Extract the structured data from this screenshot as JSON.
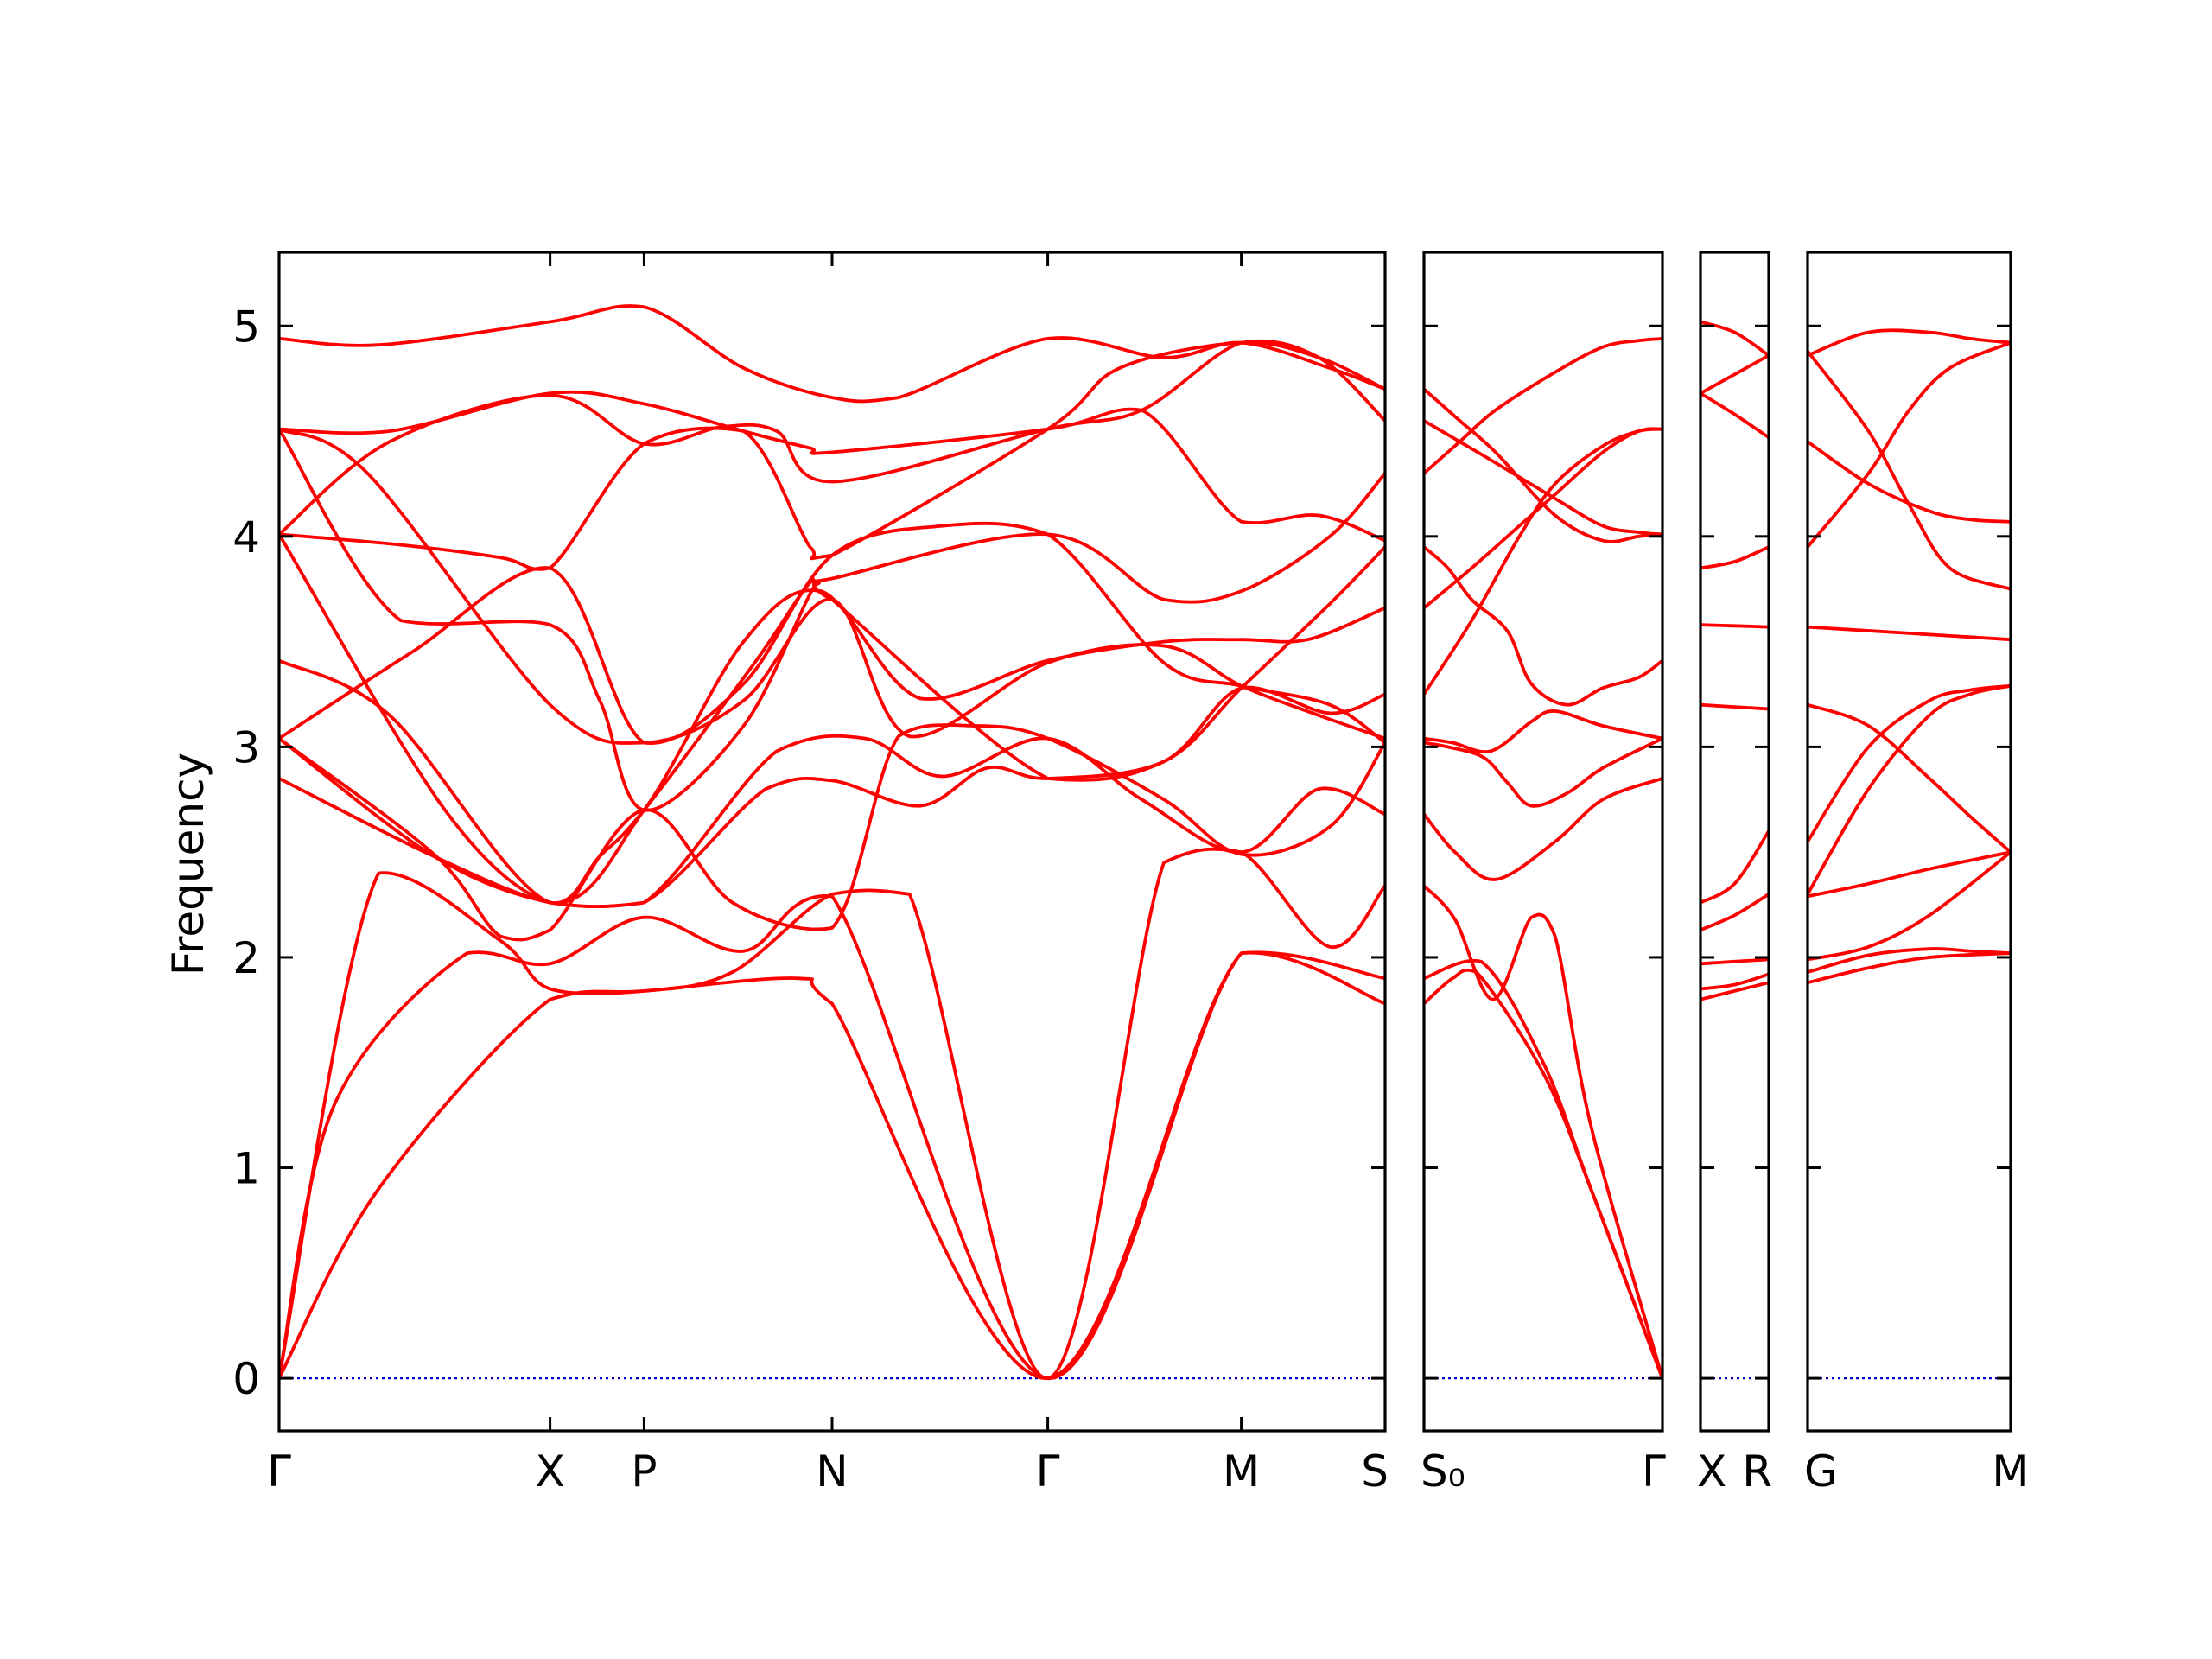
{
  "chart_data": {
    "type": "line",
    "ylabel": "Frequency",
    "ylim": [
      -0.25,
      5.35
    ],
    "yticks": [
      "0",
      "1",
      "2",
      "3",
      "4",
      "5"
    ],
    "band_color": "#ff0000",
    "zero_line_color": "#0000cc",
    "panels": [
      {
        "xlim": [
          0,
          10
        ],
        "kpoints": [
          {
            "label": "Γ",
            "x": 0
          },
          {
            "label": "X",
            "x": 2.45
          },
          {
            "label": "P",
            "x": 3.3
          },
          {
            "label": "N",
            "x": 5.0
          },
          {
            "label": "Γ",
            "x": 6.95
          },
          {
            "label": "M",
            "x": 8.7
          },
          {
            "label": "S",
            "x": 10
          }
        ],
        "bands": [
          {
            "x": [
              0,
              0.9,
              2.45,
              3.3,
              4.7,
              5.0,
              6.95,
              8.7,
              10
            ],
            "y": [
              0,
              0.9,
              1.8,
              1.84,
              1.9,
              1.78,
              0,
              2.02,
              1.78
            ]
          },
          {
            "x": [
              0,
              0.5,
              1.7,
              2.45,
              3.3,
              4.2,
              5.0,
              6.95,
              8.7,
              10
            ],
            "y": [
              0,
              1.3,
              2.02,
              1.97,
              2.19,
              2.03,
              2.29,
              0,
              2.02,
              1.9
            ]
          },
          {
            "x": [
              0,
              0.9,
              2.0,
              2.45,
              3.3,
              4.1,
              5.0,
              5.7,
              6.95,
              8.0,
              8.7,
              9.5,
              10
            ],
            "y": [
              0,
              2.4,
              2.08,
              1.85,
              1.84,
              1.93,
              2.3,
              2.3,
              0,
              2.45,
              2.5,
              2.05,
              2.34
            ]
          },
          {
            "x": [
              0,
              1.4,
              2.45,
              3.3,
              4.5,
              5.3,
              6.0,
              6.95,
              7.8,
              8.7,
              9.4,
              10
            ],
            "y": [
              2.85,
              2.48,
              2.26,
              2.26,
              2.98,
              3.04,
              2.86,
              3.04,
              2.75,
              2.5,
              2.8,
              2.68
            ]
          },
          {
            "x": [
              0,
              1.4,
              2.45,
              3.3,
              4.4,
              5.0,
              5.8,
              6.4,
              6.95,
              8.0,
              8.7,
              9.5,
              10
            ],
            "y": [
              3.04,
              2.48,
              2.26,
              2.26,
              2.8,
              2.84,
              2.72,
              2.9,
              2.85,
              2.93,
              3.28,
              3.16,
              3.25
            ]
          },
          {
            "x": [
              0,
              1.4,
              2.0,
              2.45,
              3.3,
              4.1,
              5.0,
              5.6,
              6.3,
              6.95,
              8.0,
              8.7,
              9.5,
              10
            ],
            "y": [
              3.04,
              2.49,
              2.1,
              2.13,
              2.7,
              2.26,
              2.14,
              3.05,
              3.1,
              3.04,
              2.75,
              2.49,
              2.62,
              3.02
            ]
          },
          {
            "x": [
              0,
              1.0,
              2.45,
              3.3,
              4.2,
              4.9,
              5.8,
              6.95,
              8.0,
              8.7,
              9.3,
              10
            ],
            "y": [
              3.41,
              3.15,
              2.26,
              2.7,
              3.5,
              3.74,
              3.23,
              3.41,
              3.5,
              3.51,
              3.51,
              3.66
            ]
          },
          {
            "x": [
              0,
              1.2,
              2.45,
              3.3,
              4.2,
              5.0,
              6.0,
              6.95,
              8.0,
              8.7,
              9.5,
              10
            ],
            "y": [
              3.04,
              3.45,
              3.85,
              3.02,
              3.3,
              3.91,
              4.05,
              4.01,
              3.4,
              3.29,
              3.2,
              3.02
            ]
          },
          {
            "x": [
              0,
              1.5,
              2.45,
              2.9,
              3.3,
              4.3,
              4.8,
              5.0,
              6.95,
              8.0,
              8.7,
              9.5,
              10
            ],
            "y": [
              4.01,
              2.7,
              2.26,
              2.48,
              2.7,
              3.4,
              3.78,
              3.8,
              4.01,
              3.7,
              3.74,
              4.0,
              4.3
            ]
          },
          {
            "x": [
              0,
              1.1,
              2.45,
              2.9,
              3.3,
              4.2,
              4.85,
              5.0,
              6.95,
              8.0,
              8.7,
              9.5,
              10
            ],
            "y": [
              4.51,
              3.6,
              3.58,
              3.22,
              2.7,
              3.1,
              3.77,
              3.7,
              2.85,
              2.93,
              3.28,
              3.68,
              3.95
            ]
          },
          {
            "x": [
              0,
              0.8,
              2.45,
              3.3,
              4.2,
              5.0,
              5.7,
              6.95,
              8.0,
              8.7,
              9.4,
              10
            ],
            "y": [
              4.51,
              4.3,
              3.2,
              3.02,
              3.22,
              3.7,
              3.05,
              3.4,
              3.48,
              3.29,
              3.15,
              3.04
            ]
          },
          {
            "x": [
              0,
              1.1,
              2.0,
              2.45,
              3.3,
              4.2,
              4.8,
              5.0,
              6.95,
              7.6,
              8.7,
              9.4,
              10
            ],
            "y": [
              4.01,
              3.96,
              3.9,
              3.85,
              4.44,
              4.5,
              3.95,
              3.91,
              4.51,
              4.8,
              4.92,
              4.85,
              4.7
            ]
          },
          {
            "x": [
              0,
              1.0,
              2.45,
              3.3,
              4.2,
              4.8,
              5.0,
              6.95,
              7.8,
              8.7,
              9.4,
              10
            ],
            "y": [
              4.51,
              4.5,
              4.68,
              4.63,
              4.5,
              4.42,
              4.4,
              4.51,
              4.6,
              4.07,
              4.1,
              3.98
            ]
          },
          {
            "x": [
              0,
              1.0,
              2.45,
              3.3,
              4.0,
              4.5,
              5.0,
              6.95,
              7.8,
              8.7,
              9.4,
              10
            ],
            "y": [
              4.01,
              4.45,
              4.67,
              4.44,
              4.52,
              4.5,
              4.26,
              4.51,
              4.6,
              4.92,
              4.85,
              4.55
            ]
          },
          {
            "x": [
              0,
              0.9,
              2.45,
              3.3,
              4.2,
              5.0,
              5.6,
              6.95,
              8.0,
              8.7,
              9.5,
              10
            ],
            "y": [
              4.94,
              4.91,
              5.02,
              5.09,
              4.8,
              4.66,
              4.66,
              4.94,
              4.85,
              4.92,
              4.8,
              4.7
            ]
          }
        ]
      },
      {
        "xlim": [
          0,
          10
        ],
        "kpoints": [
          {
            "label": "S₀",
            "x": 0
          },
          {
            "label": "Γ",
            "x": 10
          }
        ],
        "bands": [
          {
            "x": [
              0,
              1.2,
              2.2,
              5.0,
              7.0,
              10
            ],
            "y": [
              1.78,
              1.9,
              1.93,
              1.45,
              0.9,
              0
            ]
          },
          {
            "x": [
              0,
              2.4,
              5.0,
              7.0,
              10
            ],
            "y": [
              1.9,
              1.98,
              1.5,
              0.9,
              0
            ]
          },
          {
            "x": [
              0,
              1.3,
              2.9,
              4.5,
              5.5,
              7.0,
              10
            ],
            "y": [
              2.34,
              2.18,
              1.8,
              2.19,
              2.1,
              1.2,
              0
            ]
          },
          {
            "x": [
              0,
              1.3,
              3.0,
              5.5,
              7.5,
              10
            ],
            "y": [
              2.68,
              2.5,
              2.37,
              2.55,
              2.75,
              2.85
            ]
          },
          {
            "x": [
              0,
              1.0,
              2.5,
              3.5,
              4.5,
              6.0,
              7.5,
              10
            ],
            "y": [
              3.02,
              3.0,
              2.95,
              2.83,
              2.72,
              2.78,
              2.9,
              3.04
            ]
          },
          {
            "x": [
              0,
              1.2,
              2.8,
              4.5,
              5.5,
              7.5,
              10
            ],
            "y": [
              3.04,
              3.02,
              2.98,
              3.12,
              3.17,
              3.1,
              3.04
            ]
          },
          {
            "x": [
              0,
              2.0,
              4.0,
              5.5,
              7.5,
              9.0,
              10
            ],
            "y": [
              3.25,
              3.6,
              4.0,
              4.25,
              4.43,
              4.5,
              4.51
            ]
          },
          {
            "x": [
              0,
              2.0,
              4.0,
              5.5,
              7.5,
              9.0,
              10
            ],
            "y": [
              3.66,
              3.85,
              4.05,
              4.2,
              4.4,
              4.5,
              4.51
            ]
          },
          {
            "x": [
              0,
              1.0,
              2.0,
              3.5,
              4.5,
              6.0,
              7.5,
              9.0,
              10
            ],
            "y": [
              3.95,
              3.85,
              3.7,
              3.55,
              3.3,
              3.2,
              3.28,
              3.33,
              3.41
            ]
          },
          {
            "x": [
              0,
              1.5,
              3.0,
              5.5,
              7.5,
              9.0,
              10
            ],
            "y": [
              4.3,
              4.45,
              4.6,
              4.78,
              4.9,
              4.93,
              4.94
            ]
          },
          {
            "x": [
              0,
              1.5,
              3.0,
              5.5,
              7.5,
              9.0,
              10
            ],
            "y": [
              4.55,
              4.45,
              4.35,
              4.18,
              4.05,
              4.02,
              4.01
            ]
          },
          {
            "x": [
              0,
              1.5,
              3.0,
              5.5,
              7.5,
              9.0,
              10
            ],
            "y": [
              4.7,
              4.55,
              4.4,
              4.1,
              3.98,
              4.0,
              4.01
            ]
          }
        ]
      },
      {
        "xlim": [
          0,
          10
        ],
        "kpoints": [
          {
            "label": "X",
            "x": 0
          },
          {
            "label": "R",
            "x": 10
          }
        ],
        "bands": [
          {
            "x": [
              0,
              5,
              10
            ],
            "y": [
              1.8,
              1.84,
              1.88
            ]
          },
          {
            "x": [
              0,
              5,
              10
            ],
            "y": [
              1.85,
              1.87,
              1.92
            ]
          },
          {
            "x": [
              0,
              5,
              10
            ],
            "y": [
              1.97,
              1.98,
              1.99
            ]
          },
          {
            "x": [
              0,
              5,
              10
            ],
            "y": [
              2.13,
              2.2,
              2.3
            ]
          },
          {
            "x": [
              0,
              5,
              10
            ],
            "y": [
              2.26,
              2.35,
              2.6
            ]
          },
          {
            "x": [
              0,
              5,
              10
            ],
            "y": [
              3.2,
              3.19,
              3.18
            ]
          },
          {
            "x": [
              0,
              5,
              10
            ],
            "y": [
              3.58,
              3.575,
              3.57
            ]
          },
          {
            "x": [
              0,
              5,
              10
            ],
            "y": [
              3.85,
              3.88,
              3.95
            ]
          },
          {
            "x": [
              0,
              5,
              10
            ],
            "y": [
              4.68,
              4.58,
              4.47
            ]
          },
          {
            "x": [
              0,
              5,
              10
            ],
            "y": [
              4.68,
              4.77,
              4.86
            ]
          },
          {
            "x": [
              0,
              5,
              10
            ],
            "y": [
              5.02,
              4.97,
              4.86
            ]
          }
        ]
      },
      {
        "xlim": [
          0,
          10
        ],
        "kpoints": [
          {
            "label": "G",
            "x": 0
          },
          {
            "label": "M",
            "x": 10
          }
        ],
        "bands": [
          {
            "x": [
              0,
              3,
              6,
              10
            ],
            "y": [
              1.88,
              1.95,
              2.0,
              2.02
            ]
          },
          {
            "x": [
              0,
              3,
              6,
              8,
              10
            ],
            "y": [
              1.93,
              2.01,
              2.04,
              2.03,
              2.02
            ]
          },
          {
            "x": [
              0,
              3,
              6,
              10
            ],
            "y": [
              1.99,
              2.05,
              2.2,
              2.5
            ]
          },
          {
            "x": [
              0,
              3,
              6,
              10
            ],
            "y": [
              2.29,
              2.35,
              2.42,
              2.5
            ]
          },
          {
            "x": [
              0,
              3,
              6,
              8,
              10
            ],
            "y": [
              2.3,
              2.8,
              3.15,
              3.25,
              3.29
            ]
          },
          {
            "x": [
              0,
              3,
              6,
              8,
              10
            ],
            "y": [
              2.55,
              3.0,
              3.22,
              3.27,
              3.29
            ]
          },
          {
            "x": [
              0,
              3,
              6,
              8,
              10
            ],
            "y": [
              3.2,
              3.1,
              2.85,
              2.67,
              2.5
            ]
          },
          {
            "x": [
              0,
              5,
              10
            ],
            "y": [
              3.57,
              3.54,
              3.51
            ]
          },
          {
            "x": [
              0,
              3,
              5,
              7,
              10
            ],
            "y": [
              3.95,
              4.3,
              4.6,
              4.8,
              4.92
            ]
          },
          {
            "x": [
              0,
              3,
              6,
              8,
              10
            ],
            "y": [
              4.45,
              4.25,
              4.12,
              4.08,
              4.07
            ]
          },
          {
            "x": [
              0,
              3,
              5,
              7,
              10
            ],
            "y": [
              4.88,
              4.5,
              4.15,
              3.85,
              3.75
            ]
          },
          {
            "x": [
              0,
              3,
              6,
              8,
              10
            ],
            "y": [
              4.86,
              4.97,
              4.97,
              4.94,
              4.92
            ]
          }
        ]
      }
    ]
  }
}
